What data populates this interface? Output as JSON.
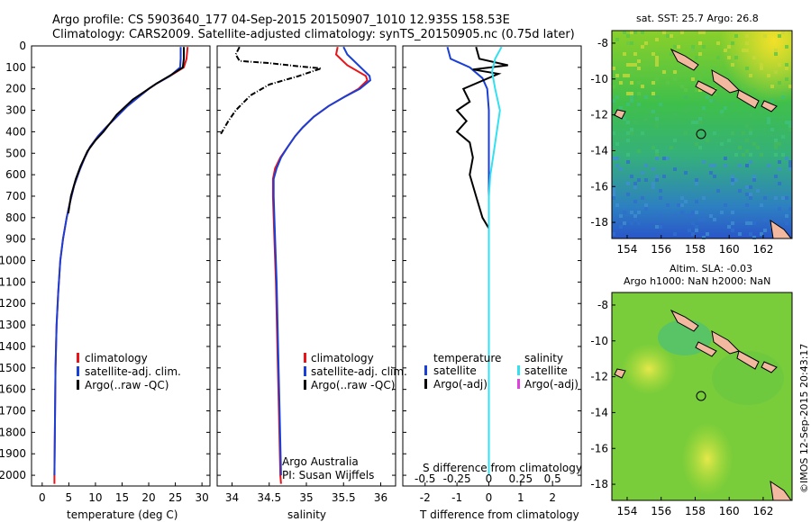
{
  "header": {
    "line1": "Argo profile: CS 5903640_177 04-Sep-2015 20150907_1010 12.935S 158.53E",
    "line2": "Climatology: CARS2009. Satellite-adjusted climatology: synTS_20150905.nc (0.75d later)"
  },
  "colors": {
    "clim": "#e8141a",
    "sat": "#1a3fd6",
    "argo": "#000000",
    "sal_sat": "#33e0f0",
    "sal_argo": "#e040e0"
  },
  "depth_axis": {
    "ticks": [
      0,
      100,
      200,
      300,
      400,
      500,
      600,
      700,
      800,
      900,
      1000,
      1100,
      1200,
      1300,
      1400,
      1500,
      1600,
      1700,
      1800,
      1900,
      2000
    ],
    "range": [
      0,
      2050
    ]
  },
  "chart_data": [
    {
      "type": "line",
      "xlabel": "temperature (deg C)",
      "xticks": [
        0,
        5,
        10,
        15,
        20,
        25,
        30
      ],
      "xlim": [
        -2,
        31.5
      ],
      "legend": [
        "climatology",
        "satellite-adj. clim.",
        "Argo(..raw -QC)"
      ],
      "series": [
        {
          "name": "climatology",
          "color": "clim",
          "points": [
            [
              27.3,
              5
            ],
            [
              27.1,
              60
            ],
            [
              26.6,
              100
            ],
            [
              24,
              140
            ],
            [
              21.5,
              175
            ],
            [
              20,
              200
            ],
            [
              18,
              240
            ],
            [
              16,
              280
            ],
            [
              14,
              330
            ],
            [
              12,
              380
            ],
            [
              10.5,
              420
            ],
            [
              9,
              470
            ],
            [
              8,
              520
            ],
            [
              7,
              580
            ],
            [
              6,
              650
            ],
            [
              5.2,
              730
            ],
            [
              4.6,
              800
            ],
            [
              3.9,
              900
            ],
            [
              3.4,
              1000
            ],
            [
              3.0,
              1150
            ],
            [
              2.7,
              1300
            ],
            [
              2.5,
              1500
            ],
            [
              2.4,
              1750
            ],
            [
              2.3,
              2000
            ],
            [
              2.3,
              2040
            ]
          ]
        },
        {
          "name": "satellite-adj. clim.",
          "color": "sat",
          "points": [
            [
              26.0,
              5
            ],
            [
              26.0,
              60
            ],
            [
              25.9,
              100
            ],
            [
              24,
              140
            ],
            [
              21.5,
              175
            ],
            [
              20,
              200
            ],
            [
              18,
              240
            ],
            [
              16,
              280
            ],
            [
              14,
              330
            ],
            [
              12,
              380
            ],
            [
              10.5,
              420
            ],
            [
              9,
              470
            ],
            [
              8,
              520
            ],
            [
              7,
              580
            ],
            [
              6,
              650
            ],
            [
              5.2,
              730
            ],
            [
              4.6,
              800
            ],
            [
              3.9,
              900
            ],
            [
              3.4,
              1000
            ],
            [
              3.0,
              1150
            ],
            [
              2.7,
              1300
            ],
            [
              2.5,
              1500
            ],
            [
              2.4,
              1750
            ],
            [
              2.3,
              2000
            ]
          ]
        },
        {
          "name": "Argo(..raw -QC)",
          "color": "argo",
          "points": [
            [
              26.6,
              5
            ],
            [
              26.6,
              60
            ],
            [
              26.4,
              100
            ],
            [
              24.2,
              135
            ],
            [
              21.5,
              175
            ],
            [
              20,
              200
            ],
            [
              17,
              250
            ],
            [
              14,
              320
            ],
            [
              11.5,
              400
            ],
            [
              10,
              440
            ],
            [
              8.5,
              490
            ],
            [
              7.2,
              560
            ],
            [
              6.3,
              620
            ],
            [
              5.4,
              700
            ],
            [
              4.9,
              780
            ]
          ]
        }
      ]
    },
    {
      "type": "line",
      "xlabel": "salinity",
      "xticks": [
        34,
        34.5,
        35,
        35.5,
        36
      ],
      "xlim": [
        33.8,
        36.2
      ],
      "legend": [
        "climatology",
        "satellite-adj. clim.",
        "Argo(..raw -QC)"
      ],
      "note1": "Argo Australia",
      "note2": "PI: Susan Wijffels",
      "series": [
        {
          "name": "climatology",
          "color": "clim",
          "points": [
            [
              35.42,
              5
            ],
            [
              35.4,
              40
            ],
            [
              35.55,
              90
            ],
            [
              35.8,
              140
            ],
            [
              35.82,
              160
            ],
            [
              35.7,
              200
            ],
            [
              35.5,
              240
            ],
            [
              35.3,
              280
            ],
            [
              35.1,
              330
            ],
            [
              34.95,
              380
            ],
            [
              34.85,
              420
            ],
            [
              34.75,
              470
            ],
            [
              34.65,
              520
            ],
            [
              34.58,
              570
            ],
            [
              34.55,
              620
            ],
            [
              34.55,
              700
            ],
            [
              34.56,
              800
            ],
            [
              34.57,
              900
            ],
            [
              34.59,
              1100
            ],
            [
              34.61,
              1400
            ],
            [
              34.63,
              1700
            ],
            [
              34.65,
              2000
            ],
            [
              34.66,
              2040
            ]
          ]
        },
        {
          "name": "satellite-adj. clim.",
          "color": "sat",
          "points": [
            [
              35.5,
              5
            ],
            [
              35.55,
              40
            ],
            [
              35.7,
              90
            ],
            [
              35.85,
              140
            ],
            [
              35.86,
              160
            ],
            [
              35.72,
              200
            ],
            [
              35.5,
              240
            ],
            [
              35.3,
              280
            ],
            [
              35.1,
              330
            ],
            [
              34.95,
              380
            ],
            [
              34.85,
              420
            ],
            [
              34.75,
              470
            ],
            [
              34.66,
              520
            ],
            [
              34.6,
              570
            ],
            [
              34.56,
              620
            ],
            [
              34.56,
              700
            ],
            [
              34.57,
              800
            ],
            [
              34.58,
              900
            ],
            [
              34.6,
              1100
            ],
            [
              34.62,
              1400
            ],
            [
              34.64,
              1700
            ],
            [
              34.66,
              2000
            ]
          ]
        },
        {
          "name": "Argo(..raw -QC)",
          "color": "argo",
          "points": [
            [
              34.1,
              5
            ],
            [
              34.05,
              40
            ],
            [
              34.1,
              70
            ],
            [
              34.5,
              80
            ],
            [
              34.9,
              95
            ],
            [
              35.2,
              105
            ],
            [
              34.9,
              140
            ],
            [
              34.5,
              180
            ],
            [
              34.25,
              230
            ],
            [
              34.05,
              300
            ],
            [
              33.95,
              350
            ],
            [
              33.85,
              410
            ]
          ]
        }
      ]
    },
    {
      "type": "line",
      "xlabel_bottom": "T difference from climatology",
      "xlabel_top": "S difference from climatology",
      "xticks_T": [
        -2,
        -1,
        0,
        1,
        2
      ],
      "xticks_S": [
        -0.5,
        -0.25,
        0,
        0.25,
        0.5
      ],
      "xlim": [
        -2.7,
        2.9
      ],
      "legend_temp_title": "temperature",
      "legend_sal_title": "salinity",
      "legend_temp": [
        "satellite",
        "Argo(-adj)"
      ],
      "legend_sal": [
        "satellite",
        "Argo(-adj)"
      ],
      "series": [
        {
          "name": "temperature satellite",
          "color": "sat",
          "points": [
            [
              -1.3,
              5
            ],
            [
              -1.2,
              60
            ],
            [
              -0.6,
              100
            ],
            [
              -0.2,
              150
            ],
            [
              -0.05,
              200
            ],
            [
              0,
              300
            ],
            [
              0,
              400
            ],
            [
              0,
              600
            ],
            [
              0,
              800
            ],
            [
              0,
              1000
            ],
            [
              0,
              1500
            ],
            [
              0,
              2000
            ]
          ]
        },
        {
          "name": "temperature Argo",
          "color": "argo",
          "points": [
            [
              -0.4,
              5
            ],
            [
              -0.3,
              60
            ],
            [
              0.6,
              90
            ],
            [
              -0.5,
              110
            ],
            [
              0.3,
              130
            ],
            [
              -0.8,
              200
            ],
            [
              -0.6,
              260
            ],
            [
              -1.0,
              300
            ],
            [
              -0.7,
              350
            ],
            [
              -1.0,
              400
            ],
            [
              -0.6,
              450
            ],
            [
              -0.5,
              520
            ],
            [
              -0.6,
              600
            ],
            [
              -0.4,
              700
            ],
            [
              -0.2,
              800
            ],
            [
              0,
              850
            ]
          ]
        },
        {
          "name": "salinity satellite",
          "color": "sal_sat",
          "points": [
            [
              0.4,
              5
            ],
            [
              0.2,
              60
            ],
            [
              0.1,
              120
            ],
            [
              0.2,
              200
            ],
            [
              0.35,
              300
            ],
            [
              0.25,
              400
            ],
            [
              0.15,
              500
            ],
            [
              0.05,
              600
            ],
            [
              0,
              700
            ],
            [
              0,
              900
            ],
            [
              0,
              1200
            ],
            [
              0,
              1500
            ],
            [
              0,
              2000
            ]
          ]
        }
      ]
    }
  ],
  "map1": {
    "title": "sat. SST: 25.7  Argo: 26.8",
    "xticks": [
      154,
      156,
      158,
      160,
      162
    ],
    "yticks": [
      -8,
      -10,
      -12,
      -14,
      -16,
      -18
    ],
    "argo_lon": 158.53,
    "argo_lat": -12.935
  },
  "map2": {
    "title1": "Altim. SLA: -0.03",
    "title2": "Argo h1000: NaN  h2000: NaN",
    "xticks": [
      154,
      156,
      158,
      160,
      162
    ],
    "yticks": [
      -8,
      -10,
      -12,
      -14,
      -16,
      -18
    ],
    "argo_lon": 158.53,
    "argo_lat": -12.935
  },
  "footer": {
    "credit": "©IMOS 12-Sep-2015 20:43:17"
  }
}
